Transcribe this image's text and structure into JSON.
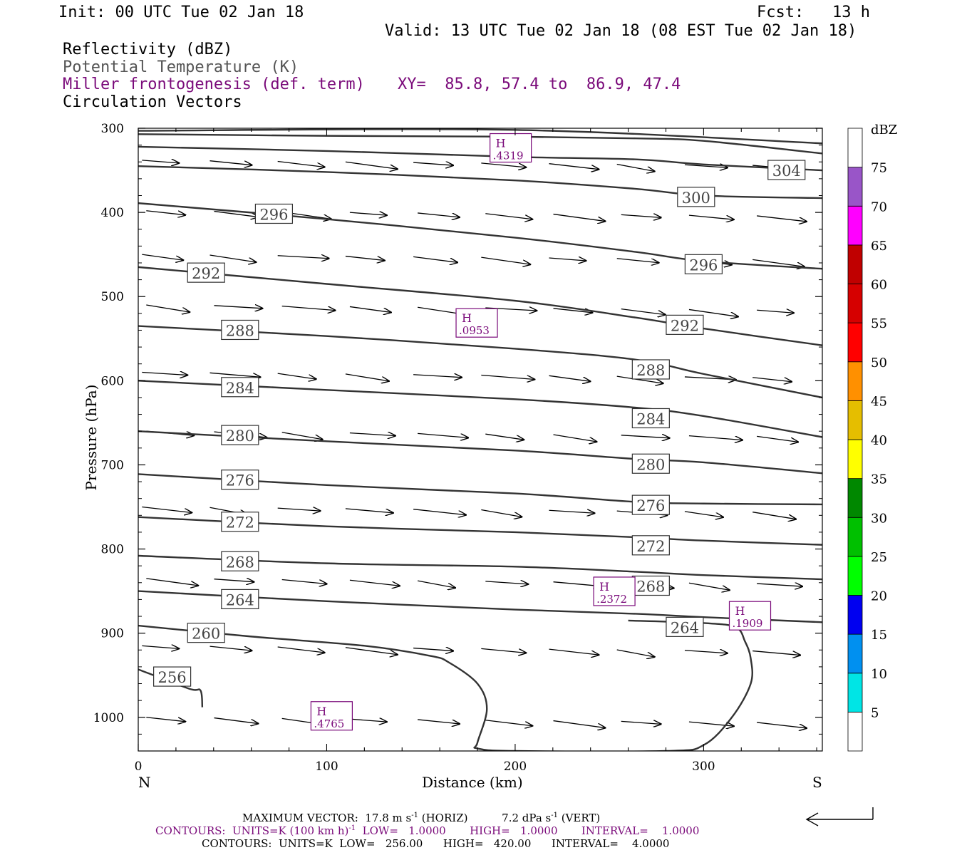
{
  "header": {
    "init": "Init: 00 UTC Tue 02 Jan 18",
    "fcst": "Fcst:   13 h",
    "valid": "Valid: 13 UTC Tue 02 Jan 18 (08 EST Tue 02 Jan 18)",
    "field1": "Reflectivity (dBZ)",
    "field2": "Potential Temperature (K)",
    "field3": "Miller frontogenesis (def. term)",
    "xy": "XY=  85.8, 57.4 to  86.9, 47.4",
    "field4": "Circulation Vectors"
  },
  "footer": {
    "maxvec_pre": "MAXIMUM VECTOR:  17.8 m s",
    "maxvec_sup": "-1",
    "maxvec_horiz": " (HORIZ)",
    "maxvec_vert_pre": "7.2 dPa s",
    "maxvec_vert_sup": "-1",
    "maxvec_vert": " (VERT)",
    "contours1_pre": "CONTOURS:  UNITS=K (100 km h)",
    "contours1_sup": "-1",
    "contours1_post": "  LOW=   1.0000       HIGH=   1.0000       INTERVAL=    1.0000",
    "contours2": "CONTOURS:  UNITS=K  LOW=   256.00      HIGH=   420.00      INTERVAL=    4.0000"
  },
  "colors": {
    "contour": "#333333",
    "frontogenesis": "#7a0a7a",
    "vector": "#000000"
  },
  "chart_data": {
    "type": "vertical-cross-section",
    "xlabel": "Distance (km)",
    "ylabel": "Pressure (hPa)",
    "xlim": [
      0,
      363
    ],
    "ylim": [
      1040,
      300
    ],
    "x_ticks": [
      0,
      100,
      200,
      300
    ],
    "y_ticks": [
      300,
      400,
      500,
      600,
      700,
      800,
      900,
      1000
    ],
    "left_end_label": "N",
    "right_end_label": "S",
    "theta_contours": [
      {
        "value": 256,
        "points": [
          [
            0,
            943
          ],
          [
            27,
            966
          ],
          [
            33,
            968
          ],
          [
            34,
            988
          ]
        ],
        "label_at": [
          18,
          952
        ]
      },
      {
        "value": 260,
        "points": [
          [
            0,
            891
          ],
          [
            60,
            904
          ],
          [
            120,
            915
          ],
          [
            155,
            927
          ],
          [
            165,
            935
          ],
          [
            180,
            960
          ],
          [
            185,
            990
          ],
          [
            180,
            1030
          ],
          [
            180,
            1037
          ],
          [
            200,
            1040
          ],
          [
            280,
            1040
          ],
          [
            300,
            1033
          ],
          [
            315,
            1000
          ],
          [
            325,
            960
          ],
          [
            325,
            930
          ],
          [
            322,
            910
          ],
          [
            317,
            893
          ],
          [
            300,
            888
          ],
          [
            260,
            885
          ]
        ],
        "label_at": [
          36,
          900
        ]
      },
      {
        "value": 264,
        "points": [
          [
            0,
            850
          ],
          [
            100,
            862
          ],
          [
            200,
            872
          ],
          [
            264,
            877
          ],
          [
            300,
            881
          ],
          [
            363,
            887
          ]
        ],
        "label_at": [
          54,
          860
        ]
      },
      {
        "value": 268,
        "points": [
          [
            0,
            808
          ],
          [
            100,
            817
          ],
          [
            200,
            821
          ],
          [
            264,
            827
          ],
          [
            300,
            831
          ],
          [
            363,
            836
          ]
        ],
        "label_at": [
          54,
          815
        ]
      },
      {
        "value": 272,
        "points": [
          [
            0,
            762
          ],
          [
            100,
            773
          ],
          [
            200,
            780
          ],
          [
            264,
            786
          ],
          [
            300,
            790
          ],
          [
            363,
            795
          ]
        ],
        "label_at": [
          54,
          768
        ]
      },
      {
        "value": 276,
        "points": [
          [
            0,
            711
          ],
          [
            100,
            724
          ],
          [
            200,
            734
          ],
          [
            264,
            744
          ],
          [
            300,
            746
          ],
          [
            363,
            747
          ]
        ],
        "label_at": [
          54,
          718
        ]
      },
      {
        "value": 280,
        "points": [
          [
            0,
            660
          ],
          [
            100,
            672
          ],
          [
            200,
            683
          ],
          [
            264,
            693
          ],
          [
            300,
            697
          ],
          [
            363,
            710
          ]
        ],
        "label_at": [
          54,
          665
        ]
      },
      {
        "value": 284,
        "points": [
          [
            0,
            600
          ],
          [
            100,
            611
          ],
          [
            200,
            622
          ],
          [
            264,
            632
          ],
          [
            300,
            642
          ],
          [
            363,
            667
          ]
        ],
        "label_at": [
          54,
          608
        ]
      },
      {
        "value": 288,
        "points": [
          [
            0,
            535
          ],
          [
            100,
            547
          ],
          [
            200,
            562
          ],
          [
            264,
            575
          ],
          [
            300,
            592
          ],
          [
            363,
            620
          ]
        ],
        "label_at": [
          54,
          540
        ]
      },
      {
        "value": 292,
        "points": [
          [
            0,
            465
          ],
          [
            100,
            485
          ],
          [
            200,
            505
          ],
          [
            264,
            525
          ],
          [
            300,
            538
          ],
          [
            363,
            558
          ]
        ],
        "label_at": [
          36,
          472
        ]
      },
      {
        "value": 296,
        "points": [
          [
            0,
            389
          ],
          [
            100,
            408
          ],
          [
            200,
            430
          ],
          [
            264,
            447
          ],
          [
            300,
            458
          ],
          [
            363,
            467
          ]
        ],
        "label_at": [
          72,
          402
        ]
      },
      {
        "value": 300,
        "points": [
          [
            0,
            345
          ],
          [
            100,
            352
          ],
          [
            200,
            362
          ],
          [
            264,
            372
          ],
          [
            300,
            380
          ],
          [
            363,
            383
          ]
        ],
        "label_at": [
          296,
          382
        ]
      },
      {
        "value": 304,
        "points": [
          [
            0,
            322
          ],
          [
            100,
            327
          ],
          [
            200,
            334
          ],
          [
            264,
            337
          ],
          [
            300,
            343
          ],
          [
            363,
            350
          ]
        ],
        "label_at": [
          344,
          350
        ]
      },
      {
        "value": 308,
        "points": [
          [
            0,
            307
          ],
          [
            100,
            309
          ],
          [
            200,
            310
          ],
          [
            264,
            312
          ],
          [
            300,
            315
          ],
          [
            363,
            330
          ]
        ],
        "label_at": null
      },
      {
        "value": 312,
        "points": [
          [
            0,
            303
          ],
          [
            200,
            302
          ],
          [
            363,
            318
          ]
        ],
        "label_at": null
      }
    ],
    "contour_label_instances": [
      {
        "value": 296,
        "at": [
          300,
          462
        ]
      },
      {
        "value": 292,
        "at": [
          290,
          534
        ]
      },
      {
        "value": 288,
        "at": [
          272,
          587
        ]
      },
      {
        "value": 284,
        "at": [
          272,
          645
        ]
      },
      {
        "value": 280,
        "at": [
          272,
          699
        ]
      },
      {
        "value": 276,
        "at": [
          272,
          748
        ]
      },
      {
        "value": 272,
        "at": [
          272,
          796
        ]
      },
      {
        "value": 268,
        "at": [
          272,
          844
        ]
      },
      {
        "value": 264,
        "at": [
          290,
          893
        ]
      }
    ],
    "frontogenesis_maxima": [
      {
        "label": "H",
        "value": ".4319",
        "x": 198,
        "p": 325
      },
      {
        "label": "H",
        "value": ".0953",
        "x": 180,
        "p": 533
      },
      {
        "label": "H",
        "value": ".2372",
        "x": 253,
        "p": 852
      },
      {
        "label": "H",
        "value": ".1909",
        "x": 325,
        "p": 881
      },
      {
        "label": "H",
        "value": ".4765",
        "x": 103,
        "p": 1000
      }
    ],
    "circulation_vectors": {
      "rows_p": [
        338,
        398,
        450,
        510,
        590,
        660,
        750,
        835,
        915,
        1000
      ],
      "note": "arrows point north-to-south (left-to-right), slight descent"
    },
    "colorbar": {
      "title": "dBZ",
      "levels": [
        5,
        10,
        15,
        20,
        25,
        30,
        35,
        40,
        45,
        50,
        55,
        60,
        65,
        70,
        75
      ],
      "colors": [
        "#ffffff",
        "#00e5e5",
        "#0090f0",
        "#0000f0",
        "#00ff00",
        "#00c000",
        "#008800",
        "#ffff00",
        "#e5be00",
        "#ff9000",
        "#ff0000",
        "#d60000",
        "#c00000",
        "#ff00ff",
        "#9955c8",
        "#ffffff"
      ]
    }
  }
}
